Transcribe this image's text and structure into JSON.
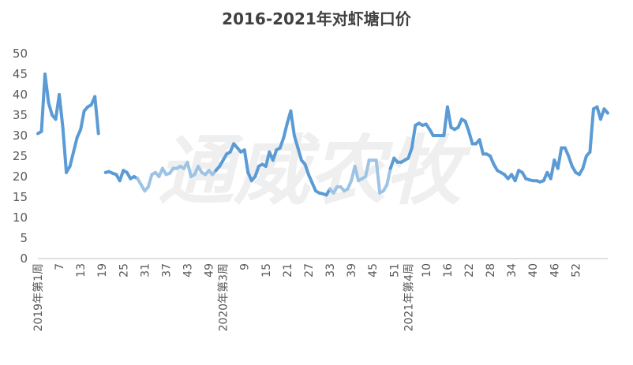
{
  "chart_data": {
    "type": "line",
    "title": "2016-2021年对虾塘口价",
    "xlabel": "",
    "ylabel": "",
    "ylim": [
      0,
      50
    ],
    "y_ticks": [
      0,
      5,
      10,
      15,
      20,
      25,
      30,
      35,
      40,
      45,
      50
    ],
    "grid": false,
    "legend": "none",
    "watermark": "通威农牧",
    "x_tick_labels": [
      {
        "index": 0,
        "label": "2019年第1周"
      },
      {
        "index": 6,
        "label": "7"
      },
      {
        "index": 12,
        "label": "13"
      },
      {
        "index": 18,
        "label": "19"
      },
      {
        "index": 24,
        "label": "25"
      },
      {
        "index": 30,
        "label": "31"
      },
      {
        "index": 36,
        "label": "37"
      },
      {
        "index": 42,
        "label": "43"
      },
      {
        "index": 48,
        "label": "49"
      },
      {
        "index": 52,
        "label": "2020年第3周"
      },
      {
        "index": 58,
        "label": "9"
      },
      {
        "index": 64,
        "label": "15"
      },
      {
        "index": 70,
        "label": "21"
      },
      {
        "index": 76,
        "label": "27"
      },
      {
        "index": 82,
        "label": "33"
      },
      {
        "index": 88,
        "label": "39"
      },
      {
        "index": 94,
        "label": "45"
      },
      {
        "index": 100,
        "label": "51"
      },
      {
        "index": 104,
        "label": "2021年第4周"
      },
      {
        "index": 109,
        "label": "10"
      },
      {
        "index": 115,
        "label": "16"
      },
      {
        "index": 121,
        "label": "22"
      },
      {
        "index": 127,
        "label": "28"
      },
      {
        "index": 133,
        "label": "34"
      },
      {
        "index": 139,
        "label": "40"
      },
      {
        "index": 145,
        "label": "46"
      },
      {
        "index": 151,
        "label": "52"
      }
    ],
    "line_color": "#5b9bd5",
    "line_color_light": "#9dc3e6",
    "series": [
      {
        "values": [
          30.5,
          31,
          45,
          38,
          35,
          34,
          40,
          32,
          21,
          22.5,
          26,
          29.5,
          31.5,
          36,
          37,
          37.5,
          39.5,
          30.5,
          null,
          21,
          21.2,
          20.8,
          20.5,
          19,
          21.5,
          21,
          19.5,
          20,
          19.5,
          18,
          16.5,
          17.5,
          20.5,
          21,
          20,
          22,
          20.5,
          20.8,
          22,
          22,
          22.5,
          22,
          23.5,
          20,
          20.5,
          22.5,
          21,
          20.5,
          21.5,
          20.5,
          21.5,
          22.5,
          24,
          25.5,
          26,
          28,
          27,
          26,
          26.5,
          21,
          19,
          20,
          22.5,
          23,
          22.5,
          26,
          24,
          26.5,
          27,
          29.5,
          33,
          36,
          30,
          27,
          24,
          23,
          20.5,
          18.5,
          16.5,
          16,
          15.8,
          15.5,
          17,
          16,
          17.5,
          17.5,
          16.5,
          17,
          19,
          22.5,
          19,
          19.5,
          20,
          24,
          24,
          24,
          16,
          16.5,
          18,
          22,
          24.5,
          23.5,
          23.5,
          24,
          24.5,
          27,
          32.5,
          33,
          32.5,
          32.8,
          31.5,
          30,
          30,
          30,
          30,
          37,
          32,
          31.5,
          32,
          34,
          33.5,
          31,
          28,
          28,
          29,
          25.5,
          25.5,
          25,
          23,
          21.5,
          21,
          20.5,
          19.5,
          20.5,
          19,
          21.5,
          21,
          19.5,
          19.2,
          19,
          19,
          18.7,
          19,
          21,
          19.5,
          24,
          22,
          27,
          27,
          25,
          22.5,
          21,
          20.5,
          22,
          25,
          26,
          36.5,
          37,
          34,
          36.5,
          35.5
        ]
      }
    ]
  }
}
